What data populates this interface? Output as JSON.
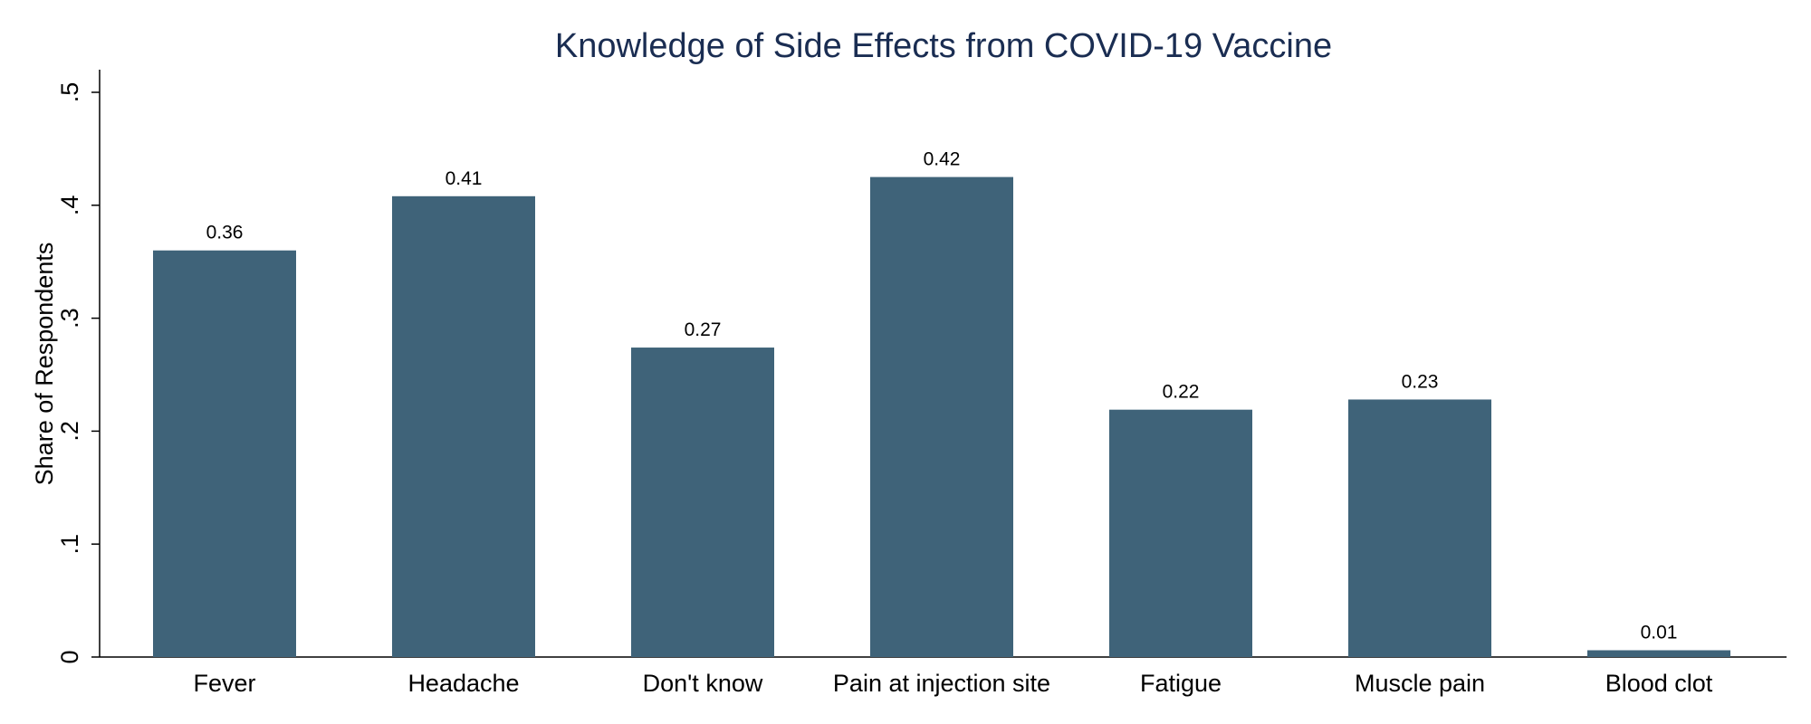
{
  "chart_data": {
    "type": "bar",
    "title": "Knowledge of Side Effects from COVID-19 Vaccine",
    "xlabel": "",
    "ylabel": "Share of Respondents",
    "categories": [
      "Fever",
      "Headache",
      "Don't know",
      "Pain at injection site",
      "Fatigue",
      "Muscle pain",
      "Blood clot"
    ],
    "values": [
      0.36,
      0.408,
      0.274,
      0.425,
      0.219,
      0.228,
      0.006
    ],
    "data_labels": [
      "0.36",
      "0.41",
      "0.27",
      "0.42",
      "0.22",
      "0.23",
      "0.01"
    ],
    "ylim": [
      0,
      0.5
    ],
    "yticks": [
      0,
      0.1,
      0.2,
      0.3,
      0.4,
      0.5
    ],
    "ytick_labels": [
      "0",
      ".1",
      ".2",
      ".3",
      ".4",
      ".5"
    ],
    "grid": false,
    "legend": "none",
    "bar_color": "#3f6379",
    "title_color": "#1a2d52"
  }
}
